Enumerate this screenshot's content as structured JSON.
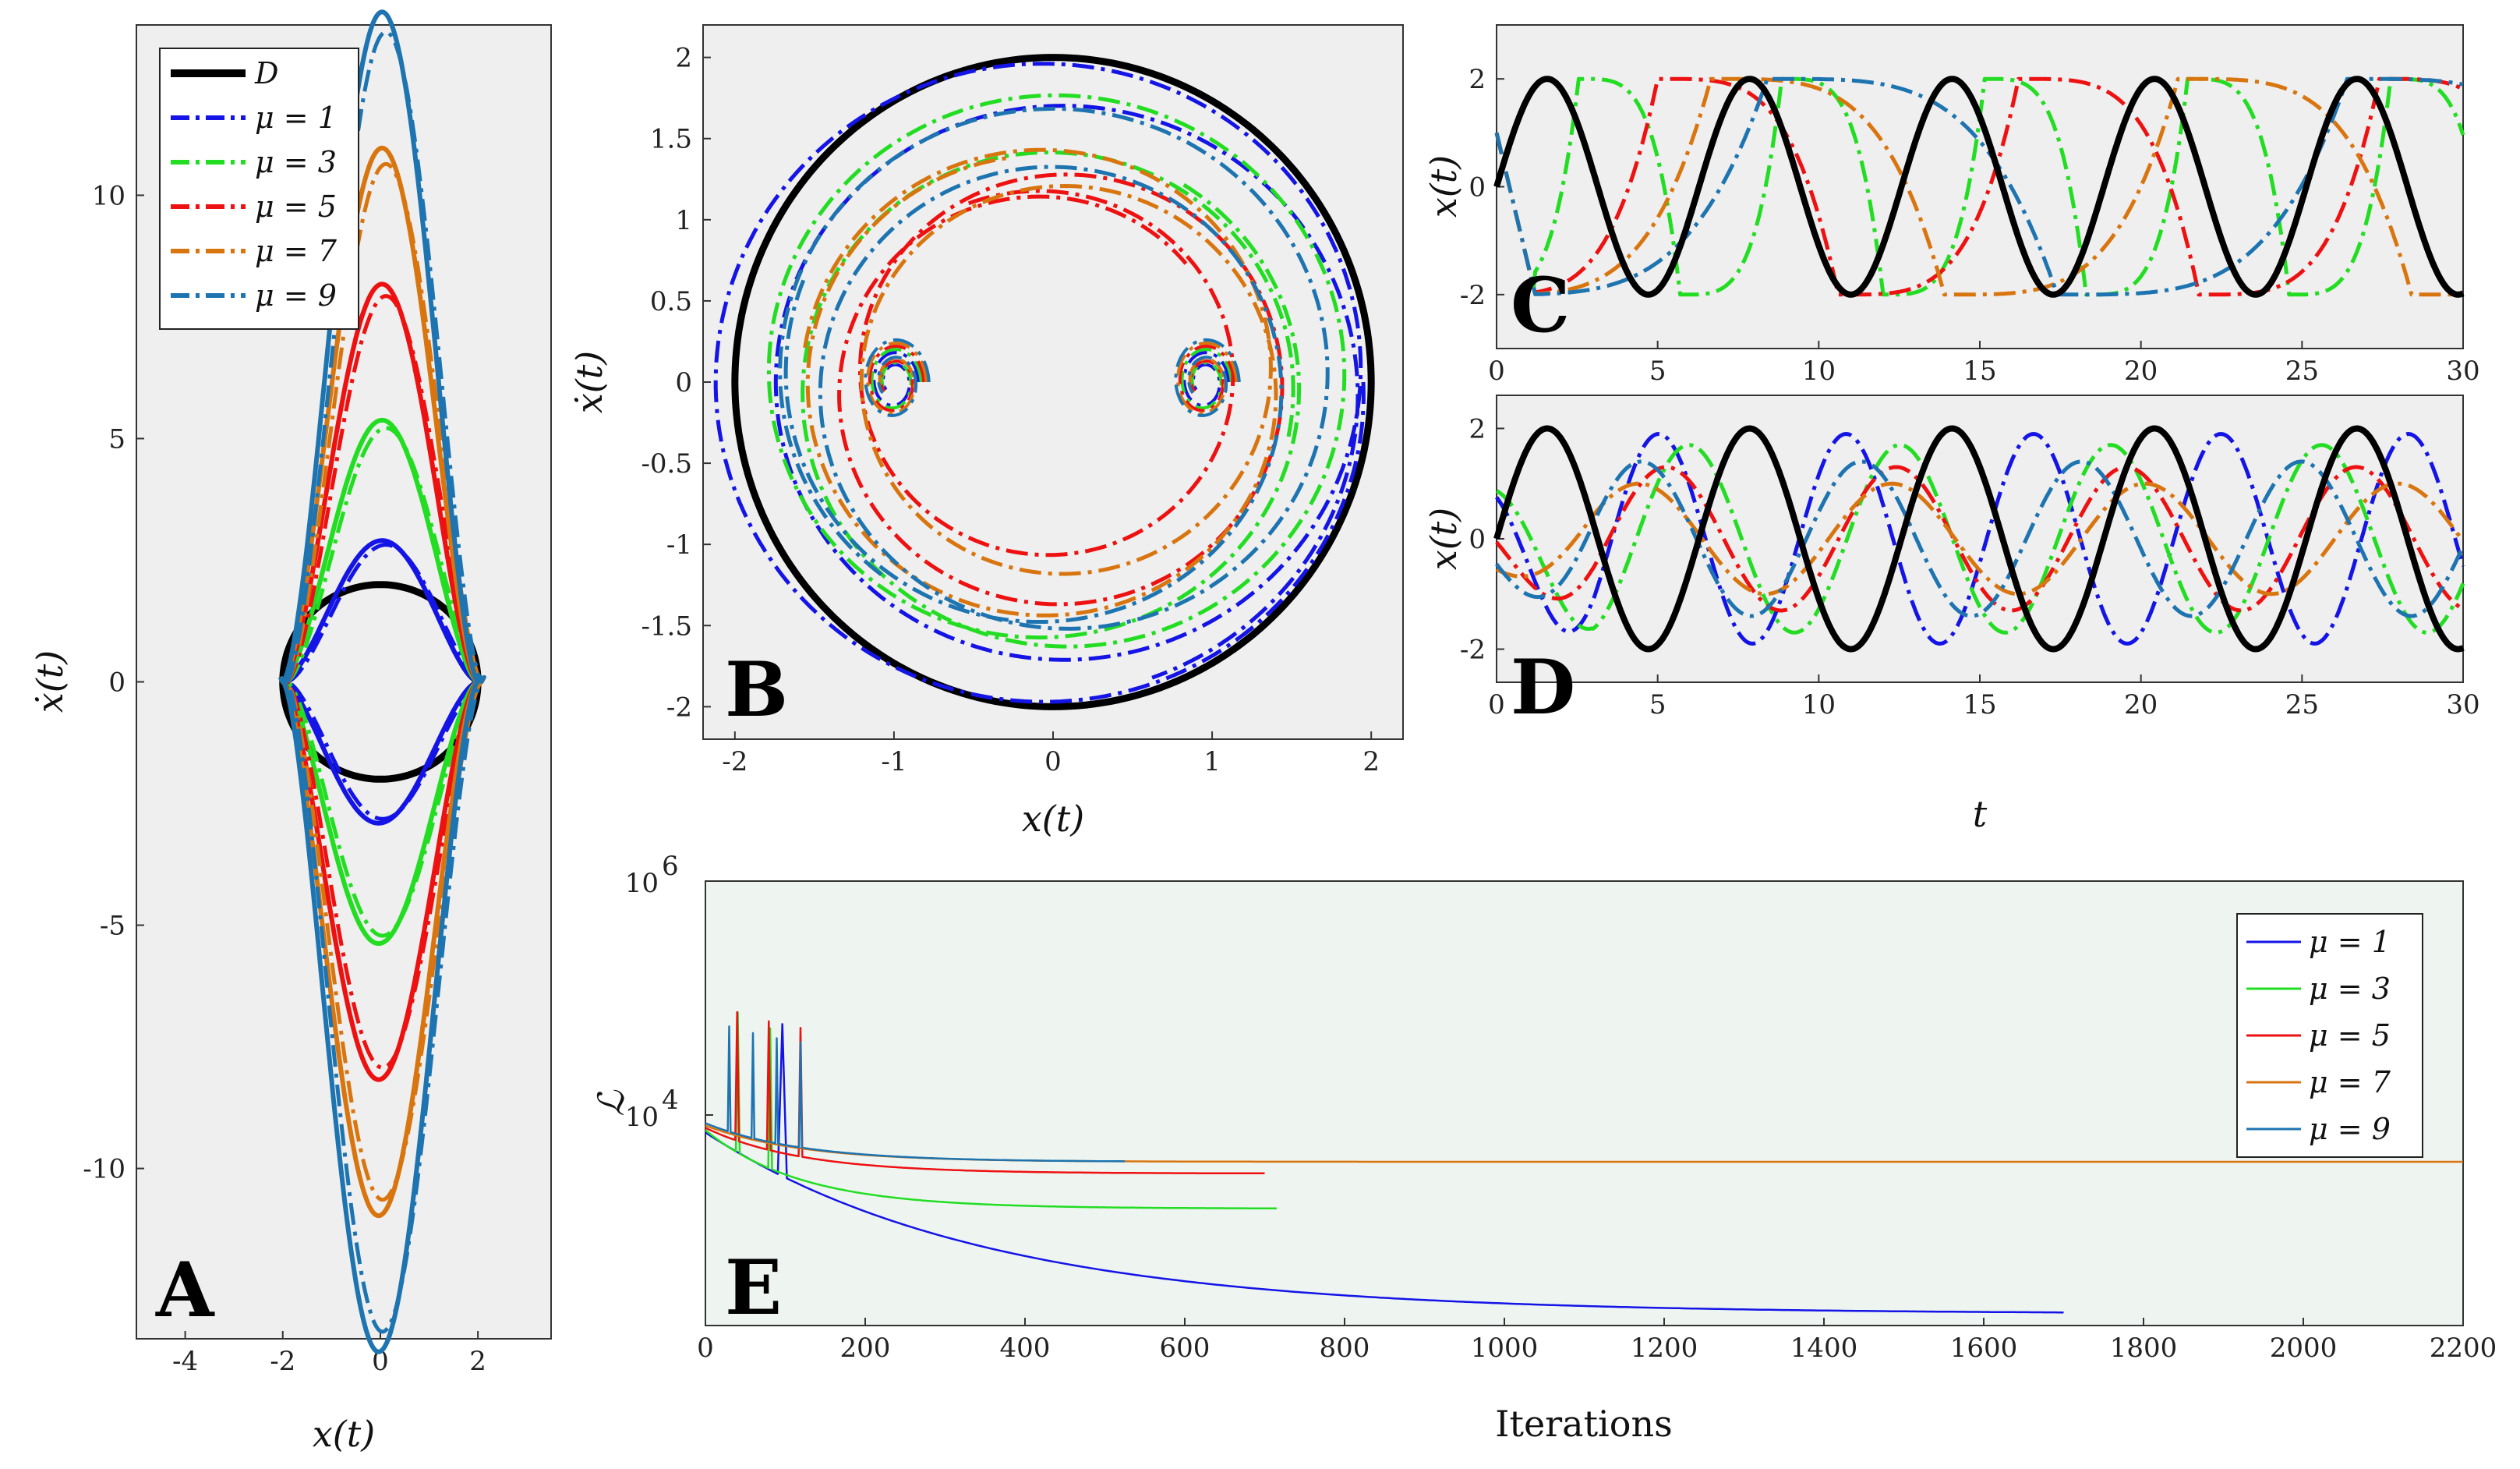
{
  "figure": {
    "colors": {
      "D": "#000000",
      "mu1": "#1414e6",
      "mu3": "#22dd22",
      "mu5": "#ee1111",
      "mu7": "#d9750f",
      "mu9": "#1d74b0",
      "panel_bg": "#efefef",
      "panel_e_bg": "#eef5f1"
    },
    "legend_series": [
      "D",
      "μ = 1",
      "μ = 3",
      "μ = 5",
      "μ = 7",
      "μ = 9"
    ]
  },
  "chart_data": [
    {
      "panel": "A",
      "type": "line",
      "title": "",
      "xlabel": "x(t)",
      "ylabel": "ẋ(t)",
      "xlim": [
        -5,
        3.5
      ],
      "ylim": [
        -13.5,
        13.5
      ],
      "xticks": [
        "-4",
        "-2",
        "0",
        "2"
      ],
      "yticks": [
        "10",
        "5",
        "0",
        "-5",
        "-10"
      ],
      "xtick_values": [
        -4,
        -2,
        0,
        2
      ],
      "ytick_values": [
        10,
        5,
        0,
        -5,
        -10
      ],
      "legend": [
        "D",
        "μ = 1",
        "μ = 3",
        "μ = 5",
        "μ = 7",
        "μ = 9"
      ],
      "series": [
        {
          "name": "D",
          "shape": "circle",
          "radius": 2
        },
        {
          "name": "μ = 1",
          "peak": 2.7
        },
        {
          "name": "μ = 3",
          "peak": 5.0
        },
        {
          "name": "μ = 5",
          "peak": 7.6
        },
        {
          "name": "μ = 7",
          "peak": 10.2
        },
        {
          "name": "μ = 9",
          "peak": 12.8
        }
      ]
    },
    {
      "panel": "B",
      "type": "line",
      "xlabel": "x(t)",
      "ylabel": "ẋ(t)",
      "xlim": [
        -2.2,
        2.2
      ],
      "ylim": [
        -2.2,
        2.2
      ],
      "xticks": [
        "-2",
        "-1",
        "0",
        "1",
        "2"
      ],
      "yticks": [
        "2",
        "1.5",
        "1",
        "0.5",
        "0",
        "-0.5",
        "-1",
        "-1.5",
        "-2"
      ],
      "xtick_values": [
        -2,
        -1,
        0,
        1,
        2
      ],
      "ytick_values": [
        2,
        1.5,
        1,
        0.5,
        0,
        -0.5,
        -1,
        -1.5,
        -2
      ],
      "series": [
        {
          "name": "D",
          "shape": "circle",
          "radius": 2
        },
        {
          "name": "μ = 1",
          "radius": 1.95
        },
        {
          "name": "μ = 3",
          "radius": 1.7
        },
        {
          "name": "μ = 5",
          "radius": 1.3
        },
        {
          "name": "μ = 7",
          "radius": 1.4
        },
        {
          "name": "μ = 9",
          "radius": 1.6
        }
      ]
    },
    {
      "panel": "C",
      "type": "line",
      "xlabel": "",
      "ylabel": "x(t)",
      "xlim": [
        0,
        30
      ],
      "ylim": [
        -3,
        3
      ],
      "xticks": [
        "0",
        "5",
        "10",
        "15",
        "20",
        "25",
        "30"
      ],
      "yticks": [
        "2",
        "0",
        "-2"
      ],
      "xtick_values": [
        0,
        5,
        10,
        15,
        20,
        25,
        30
      ],
      "ytick_values": [
        2,
        0,
        -2
      ],
      "series": [
        {
          "name": "D",
          "amplitude": 2,
          "omega": 1
        },
        {
          "name": "μ = 3",
          "period": 6.3
        },
        {
          "name": "μ = 5",
          "period": 11.2
        },
        {
          "name": "μ = 7",
          "period": 14.5
        },
        {
          "name": "μ = 9",
          "period": 18.0
        }
      ]
    },
    {
      "panel": "D",
      "type": "line",
      "xlabel": "t",
      "ylabel": "x(t)",
      "xlim": [
        0,
        30
      ],
      "ylim": [
        -2.6,
        2.6
      ],
      "xticks": [
        "0",
        "5",
        "10",
        "15",
        "20",
        "25",
        "30"
      ],
      "yticks": [
        "2",
        "0",
        "-2"
      ],
      "xtick_values": [
        0,
        5,
        10,
        15,
        20,
        25,
        30
      ],
      "ytick_values": [
        2,
        0,
        -2
      ],
      "series": [
        {
          "name": "D",
          "amplitude": 2
        },
        {
          "name": "μ = 1",
          "amplitude": 1.9
        },
        {
          "name": "μ = 3",
          "amplitude": 1.7
        },
        {
          "name": "μ = 5",
          "amplitude": 1.3
        },
        {
          "name": "μ = 7",
          "amplitude": 1.0
        },
        {
          "name": "μ = 9",
          "amplitude": 1.4
        }
      ]
    },
    {
      "panel": "E",
      "type": "line",
      "xlabel": "Iterations",
      "ylabel": "ℒ",
      "yscale": "log",
      "xlim": [
        0,
        2200
      ],
      "ylim_log10": [
        2.2,
        6
      ],
      "xticks": [
        "0",
        "200",
        "400",
        "600",
        "800",
        "1000",
        "1200",
        "1400",
        "1600",
        "1800",
        "2000",
        "2200"
      ],
      "xtick_values": [
        0,
        200,
        400,
        600,
        800,
        1000,
        1200,
        1400,
        1600,
        1800,
        2000,
        2200
      ],
      "ytick_base": "10",
      "yticks_exp": [
        "6",
        "4"
      ],
      "ytick_values_log10": [
        6,
        4
      ],
      "legend": [
        "μ = 1",
        "μ = 3",
        "μ = 5",
        "μ = 7",
        "μ = 9"
      ],
      "series": [
        {
          "name": "μ = 1",
          "iterations": 1700,
          "final_log10": 2.3
        },
        {
          "name": "μ = 3",
          "iterations": 715,
          "final_log10": 3.2
        },
        {
          "name": "μ = 5",
          "iterations": 700,
          "final_log10": 3.5
        },
        {
          "name": "μ = 7",
          "iterations": 2200,
          "final_log10": 3.6
        },
        {
          "name": "μ = 9",
          "iterations": 525,
          "final_log10": 3.6
        }
      ]
    }
  ]
}
